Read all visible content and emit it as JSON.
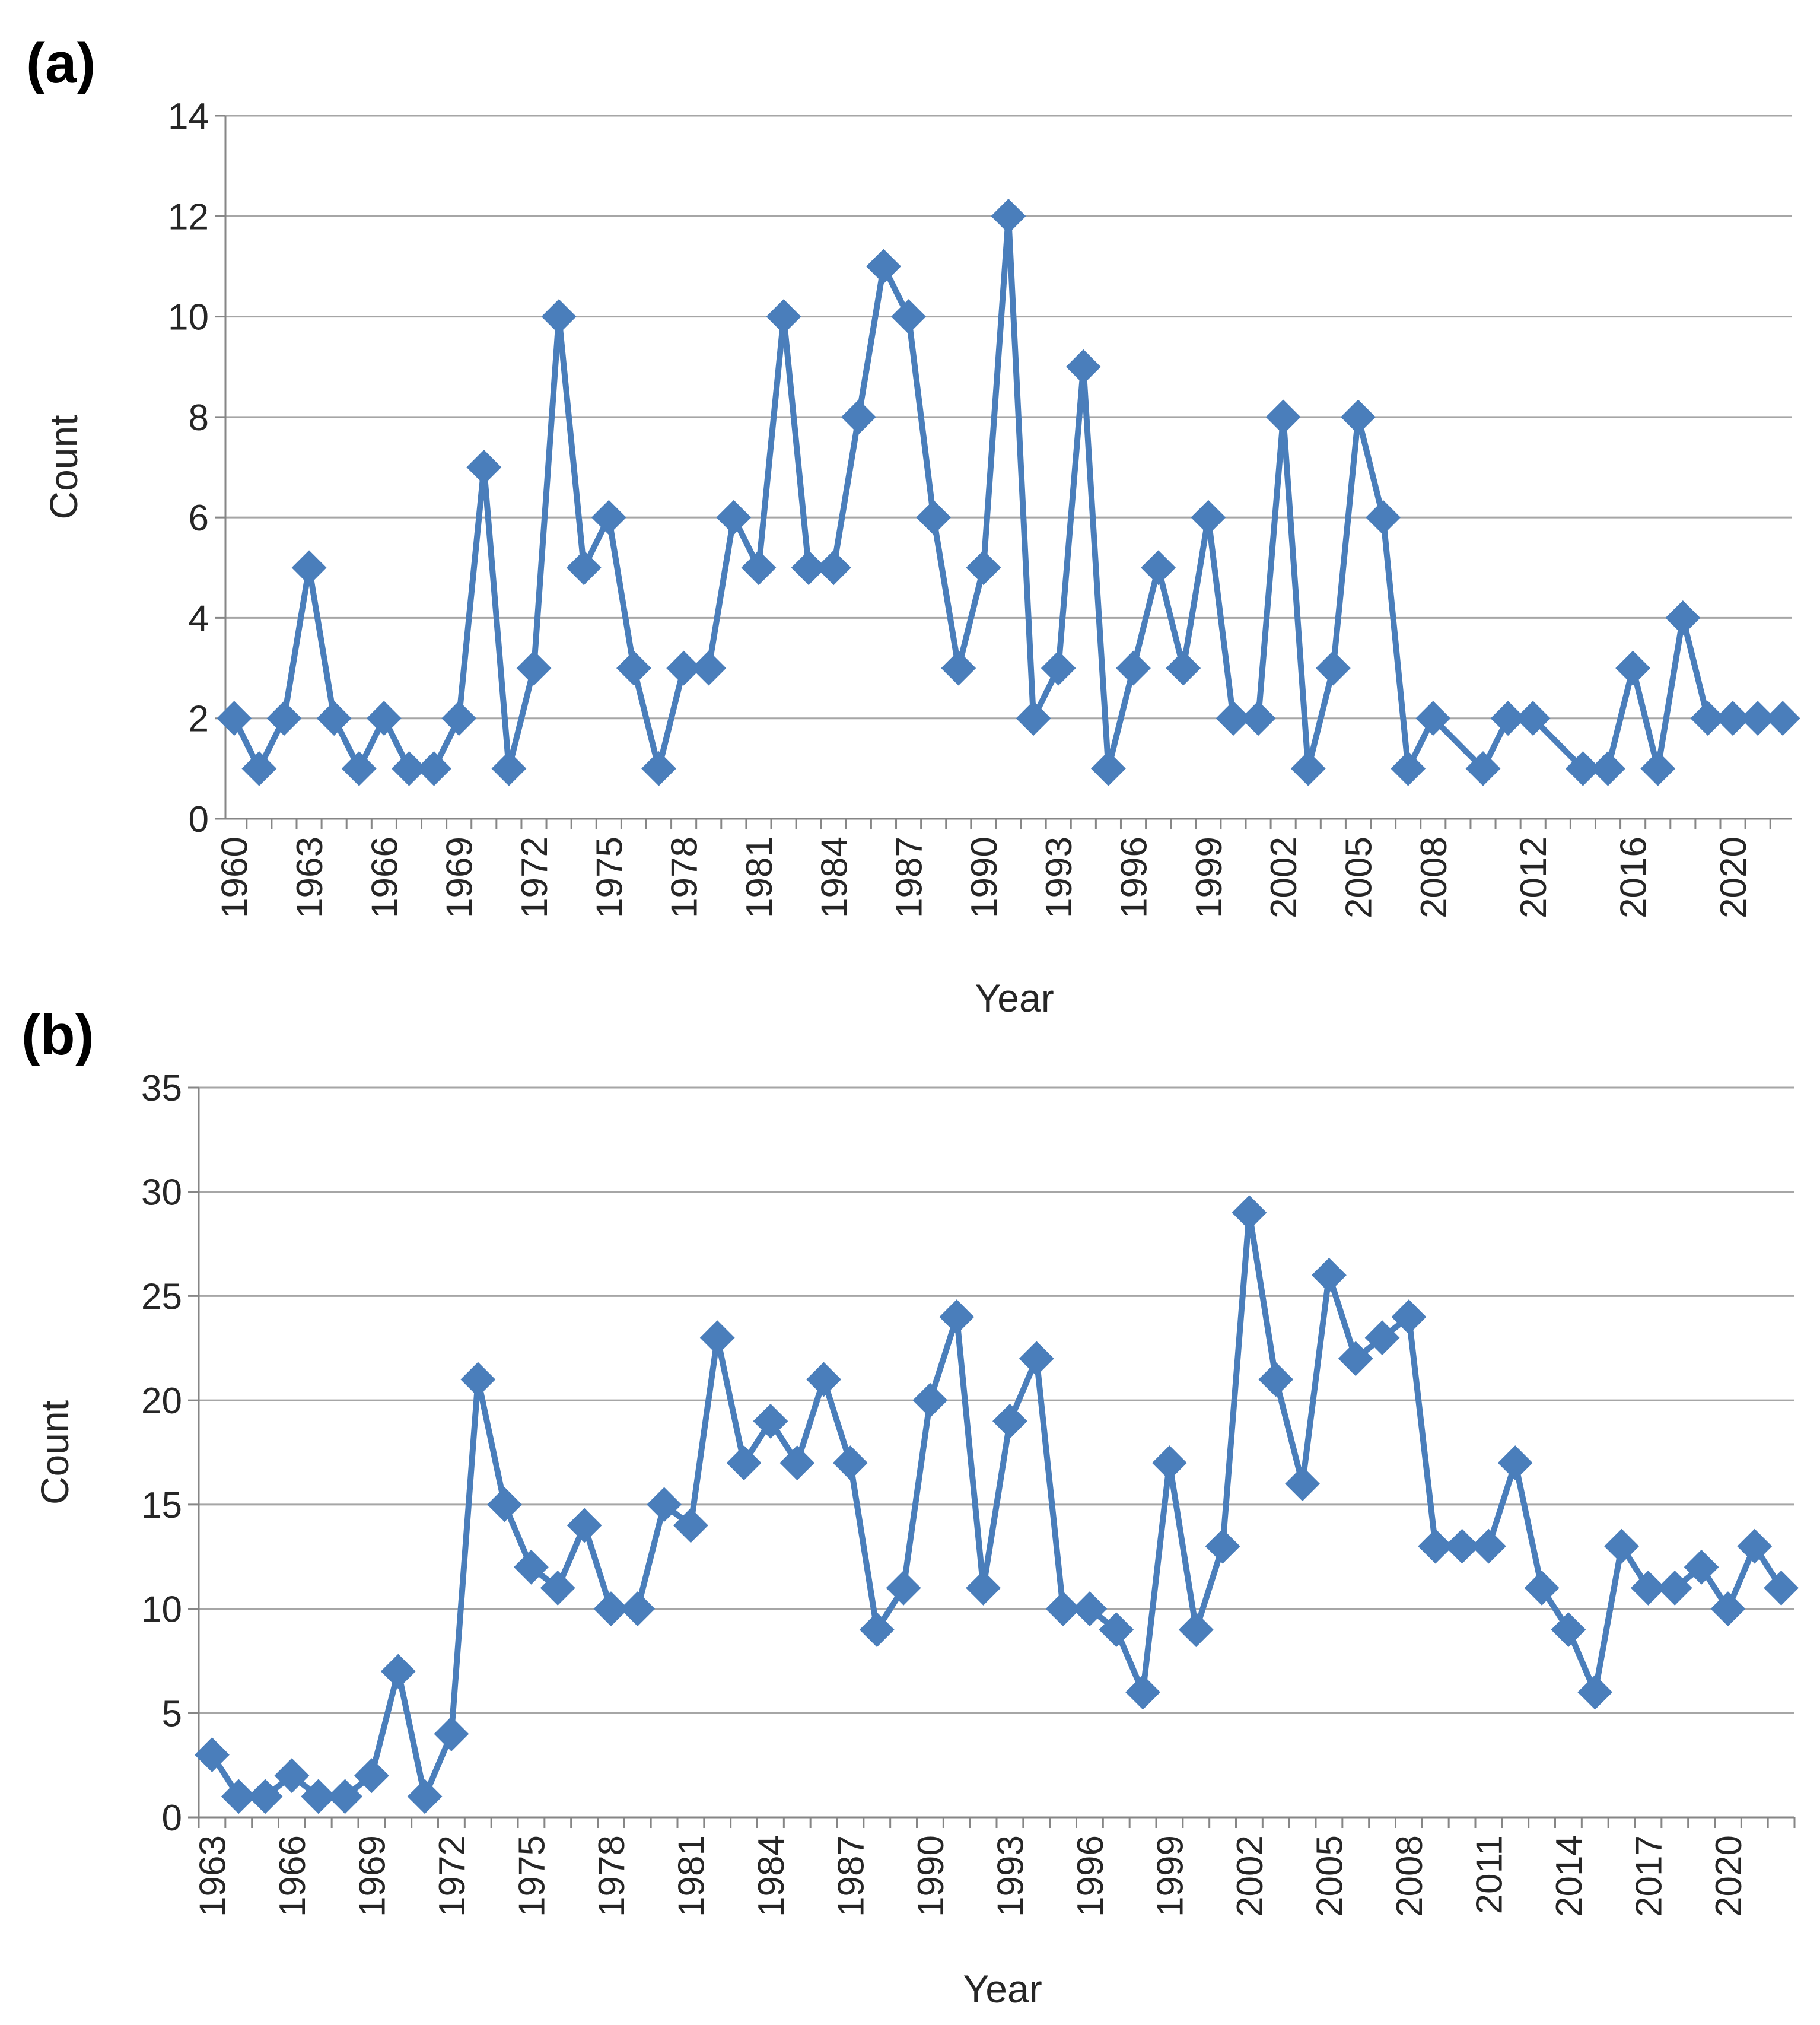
{
  "panels": {
    "a": {
      "label": "(a)"
    },
    "b": {
      "label": "(b)"
    }
  },
  "colors": {
    "series": "#4a7ebb",
    "grid": "#a6a6a6",
    "axis": "#868686",
    "text": "#262626"
  },
  "chart_data": [
    {
      "type": "line",
      "panel": "(a)",
      "title": "",
      "xlabel": "Year",
      "ylabel": "Count",
      "ylim": [
        0,
        14
      ],
      "yticks": [
        0,
        2,
        4,
        6,
        8,
        10,
        12,
        14
      ],
      "marker": "diamond",
      "x": [
        1960,
        1961,
        1962,
        1963,
        1964,
        1965,
        1966,
        1967,
        1968,
        1969,
        1970,
        1971,
        1972,
        1973,
        1974,
        1975,
        1976,
        1977,
        1978,
        1979,
        1980,
        1981,
        1982,
        1983,
        1984,
        1985,
        1986,
        1987,
        1988,
        1989,
        1990,
        1991,
        1992,
        1993,
        1994,
        1995,
        1996,
        1997,
        1998,
        1999,
        2000,
        2001,
        2002,
        2003,
        2004,
        2005,
        2006,
        2007,
        2008,
        2010,
        2011,
        2012,
        2014,
        2015,
        2016,
        2017,
        2018,
        2019,
        2020,
        2021,
        2022
      ],
      "tick_labels": [
        "1960",
        "1963",
        "1966",
        "1969",
        "1972",
        "1975",
        "1978",
        "1981",
        "1984",
        "1987",
        "1990",
        "1993",
        "1996",
        "1999",
        "2002",
        "2005",
        "2008",
        "2012",
        "2016",
        "2020"
      ],
      "series": [
        {
          "name": "Count",
          "values": [
            2,
            1,
            2,
            5,
            2,
            1,
            2,
            1,
            1,
            2,
            7,
            1,
            3,
            10,
            5,
            6,
            3,
            1,
            3,
            3,
            6,
            5,
            10,
            5,
            5,
            8,
            11,
            10,
            6,
            3,
            5,
            12,
            2,
            3,
            9,
            1,
            3,
            5,
            3,
            6,
            2,
            2,
            8,
            1,
            3,
            8,
            6,
            1,
            2,
            1,
            2,
            2,
            1,
            1,
            3,
            1,
            4,
            2,
            2,
            2,
            2
          ]
        }
      ]
    },
    {
      "type": "line",
      "panel": "(b)",
      "title": "",
      "xlabel": "Year",
      "ylabel": "Count",
      "ylim": [
        0,
        35
      ],
      "yticks": [
        0,
        5,
        10,
        15,
        20,
        25,
        30,
        35
      ],
      "marker": "diamond",
      "x": [
        1963,
        1964,
        1965,
        1966,
        1967,
        1968,
        1969,
        1970,
        1971,
        1972,
        1973,
        1974,
        1975,
        1976,
        1977,
        1978,
        1979,
        1980,
        1981,
        1982,
        1983,
        1984,
        1985,
        1986,
        1987,
        1988,
        1989,
        1990,
        1991,
        1992,
        1993,
        1994,
        1995,
        1996,
        1997,
        1998,
        1999,
        2000,
        2001,
        2002,
        2003,
        2004,
        2005,
        2006,
        2007,
        2008,
        2009,
        2010,
        2011,
        2012,
        2013,
        2014,
        2015,
        2016,
        2017,
        2018,
        2019,
        2020,
        2021,
        2022
      ],
      "tick_labels": [
        "1963",
        "1966",
        "1969",
        "1972",
        "1975",
        "1978",
        "1981",
        "1984",
        "1987",
        "1990",
        "1993",
        "1996",
        "1999",
        "2002",
        "2005",
        "2008",
        "2011",
        "2014",
        "2017",
        "2020"
      ],
      "series": [
        {
          "name": "Count",
          "values": [
            3,
            1,
            1,
            2,
            1,
            1,
            2,
            7,
            1,
            4,
            21,
            15,
            12,
            11,
            14,
            10,
            10,
            15,
            14,
            23,
            17,
            19,
            17,
            21,
            17,
            9,
            11,
            20,
            24,
            11,
            19,
            22,
            10,
            10,
            9,
            6,
            17,
            9,
            13,
            29,
            21,
            16,
            26,
            22,
            23,
            24,
            13,
            13,
            13,
            17,
            11,
            9,
            6,
            13,
            11,
            11,
            12,
            10,
            13,
            11
          ]
        }
      ]
    }
  ]
}
